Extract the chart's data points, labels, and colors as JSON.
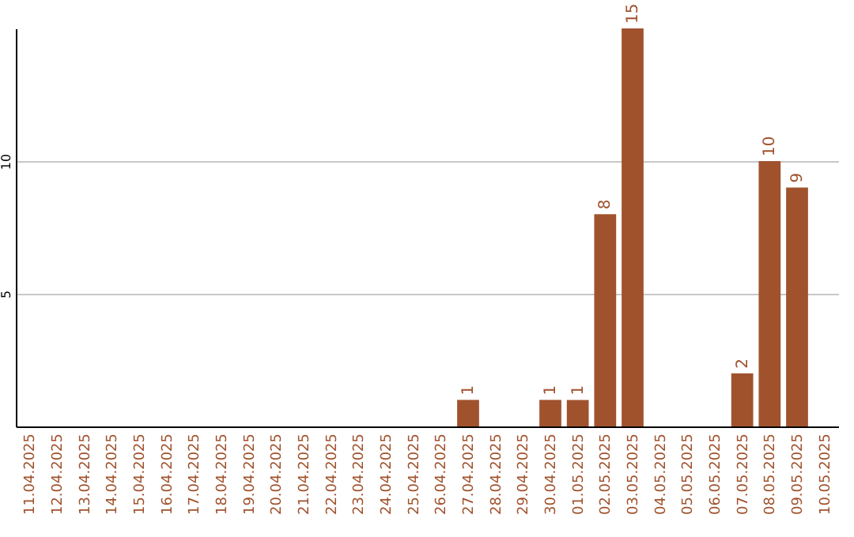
{
  "chart_data": {
    "type": "bar",
    "categories": [
      "11.04.2025",
      "12.04.2025",
      "13.04.2025",
      "14.04.2025",
      "15.04.2025",
      "16.04.2025",
      "17.04.2025",
      "18.04.2025",
      "19.04.2025",
      "20.04.2025",
      "21.04.2025",
      "22.04.2025",
      "23.04.2025",
      "24.04.2025",
      "25.04.2025",
      "26.04.2025",
      "27.04.2025",
      "28.04.2025",
      "29.04.2025",
      "30.04.2025",
      "01.05.2025",
      "02.05.2025",
      "03.05.2025",
      "04.05.2025",
      "05.05.2025",
      "06.05.2025",
      "07.05.2025",
      "08.05.2025",
      "09.05.2025",
      "10.05.2025"
    ],
    "values": [
      0,
      0,
      0,
      0,
      0,
      0,
      0,
      0,
      0,
      0,
      0,
      0,
      0,
      0,
      0,
      0,
      1,
      0,
      0,
      1,
      1,
      8,
      15,
      0,
      0,
      0,
      2,
      10,
      9,
      0
    ],
    "value_labels": [
      null,
      null,
      null,
      null,
      null,
      null,
      null,
      null,
      null,
      null,
      null,
      null,
      null,
      null,
      null,
      null,
      "1",
      null,
      null,
      "1",
      "1",
      "8",
      "15",
      null,
      null,
      null,
      "2",
      "10",
      "9",
      null
    ],
    "color": "#a0522d",
    "ylim": [
      0,
      15
    ],
    "yticks": [
      5,
      10
    ],
    "grid": "y"
  }
}
